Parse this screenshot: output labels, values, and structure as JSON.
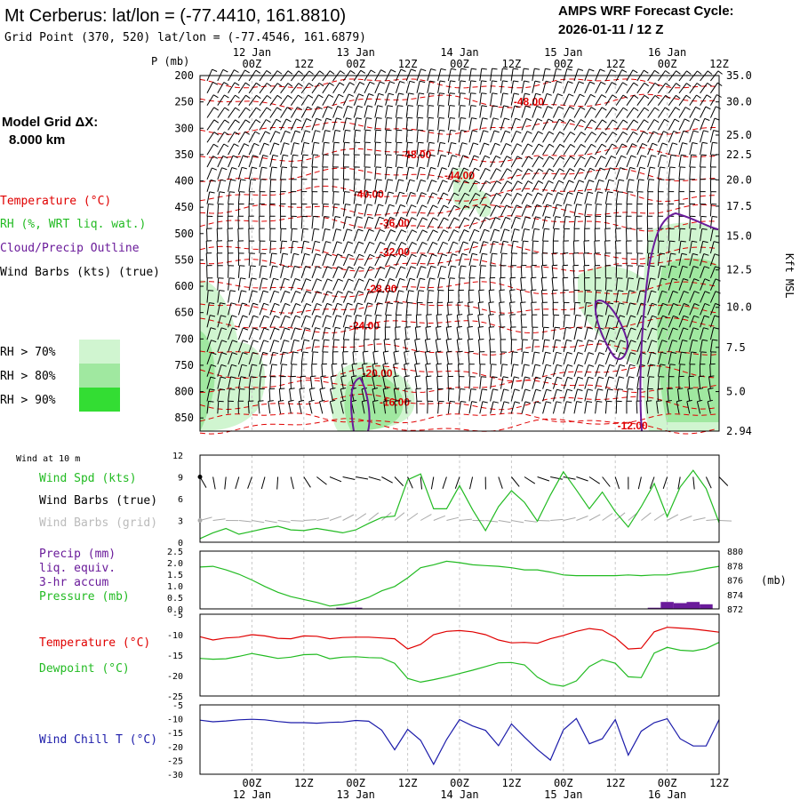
{
  "header": {
    "title": "Mt Cerberus:  lat/lon = (-77.4410, 161.8810)",
    "subtitle": "Grid Point (370, 520) lat/lon = (-77.4546, 161.6879)",
    "forecast_label": "AMPS WRF Forecast Cycle:",
    "forecast_cycle": "2026-01-11 / 12  Z",
    "grid_label": "Model Grid ΔX:",
    "grid_value": "8.000 km"
  },
  "legend": {
    "temperature": "Temperature (°C)",
    "rh": "RH (%, WRT liq. wat.)",
    "cloud": "Cloud/Precip Outline",
    "wind": "Wind Barbs (kts) (true)",
    "rh70": "RH > 70%",
    "rh80": "RH > 80%",
    "rh90": "RH > 90%",
    "colors": {
      "temp": "#e00000",
      "rh70": "#d0f5d0",
      "rh80": "#a0e8a0",
      "rh90": "#33dd33",
      "cloud": "#6a1b9a",
      "wind": "#000000"
    }
  },
  "chart_data": [
    {
      "type": "heatmap",
      "panel": "vertical-cross-section",
      "y_left_label": "P (mb)",
      "y_right_label": "Kft MSL",
      "ylim": [
        200,
        875
      ],
      "y_left_ticks": [
        "200",
        "250",
        "300",
        "350",
        "400",
        "450",
        "500",
        "550",
        "600",
        "650",
        "700",
        "750",
        "800",
        "850"
      ],
      "y_right_ticks": [
        {
          "label": "35.0",
          "p": 200
        },
        {
          "label": "30.0",
          "p": 250
        },
        {
          "label": "25.0",
          "p": 313
        },
        {
          "label": "22.5",
          "p": 350
        },
        {
          "label": "20.0",
          "p": 398
        },
        {
          "label": "17.5",
          "p": 448
        },
        {
          "label": "15.0",
          "p": 505
        },
        {
          "label": "12.5",
          "p": 569
        },
        {
          "label": "10.0",
          "p": 640
        },
        {
          "label": "7.5",
          "p": 716
        },
        {
          "label": "5.0",
          "p": 800
        },
        {
          "label": "2.94",
          "p": 875
        }
      ],
      "x_ticks": [
        "00Z",
        "12Z",
        "00Z",
        "12Z",
        "00Z",
        "12Z",
        "00Z",
        "12Z",
        "00Z",
        "12Z"
      ],
      "x_tick_hours": [
        12,
        24,
        36,
        48,
        60,
        72,
        84,
        96,
        108,
        120
      ],
      "x_dates": [
        {
          "label": "12 Jan",
          "hour": 12
        },
        {
          "label": "13 Jan",
          "hour": 36
        },
        {
          "label": "14 Jan",
          "hour": 60
        },
        {
          "label": "15 Jan",
          "hour": 84
        },
        {
          "label": "16 Jan",
          "hour": 108
        }
      ],
      "xlim": [
        0,
        120
      ],
      "isotherms": [
        {
          "label": "-48.00",
          "hour": 76,
          "p": 250
        },
        {
          "label": "-48.00",
          "hour": 50,
          "p": 350
        },
        {
          "label": "-44.00",
          "hour": 60,
          "p": 390
        },
        {
          "label": "-40.00",
          "hour": 39,
          "p": 425
        },
        {
          "label": "-36.00",
          "hour": 45,
          "p": 480
        },
        {
          "label": "-32.00",
          "hour": 45,
          "p": 535
        },
        {
          "label": "-28.00",
          "hour": 42,
          "p": 605
        },
        {
          "label": "-24.00",
          "hour": 38,
          "p": 675
        },
        {
          "label": "-20.00",
          "hour": 41,
          "p": 765
        },
        {
          "label": "-16.00",
          "hour": 45,
          "p": 820
        },
        {
          "label": "-12.00",
          "hour": 100,
          "p": 865
        }
      ]
    },
    {
      "type": "line",
      "panel": "wind-10m",
      "header": "Wind at 10 m",
      "label_speed": "Wind Spd (kts)",
      "label_barbs_true": "Wind Barbs (true)",
      "label_barbs_grid": "Wind Barbs (grid)",
      "ylim": [
        0,
        12
      ],
      "y_ticks": [
        "0",
        "3",
        "6",
        "9",
        "12"
      ],
      "x": [
        0,
        3,
        6,
        9,
        12,
        15,
        18,
        21,
        24,
        27,
        30,
        33,
        36,
        39,
        42,
        45,
        48,
        51,
        54,
        57,
        60,
        63,
        66,
        69,
        72,
        75,
        78,
        81,
        84,
        87,
        90,
        93,
        96,
        99,
        102,
        105,
        108,
        111,
        114,
        117,
        120
      ],
      "series": [
        {
          "values": [
            0.5,
            1.3,
            1.9,
            1.1,
            1.5,
            1.9,
            2.2,
            1.7,
            1.6,
            1.9,
            1.6,
            1.3,
            1.7,
            2.6,
            3.4,
            3.6,
            8.6,
            9.4,
            4.6,
            4.6,
            7.8,
            4.5,
            1.6,
            4.9,
            7.1,
            5.5,
            2.9,
            6.5,
            9.7,
            7.2,
            4.6,
            6.9,
            4.2,
            2.1,
            4.9,
            8.1,
            3.5,
            7.6,
            9.9,
            7.4,
            2.7
          ]
        }
      ]
    },
    {
      "type": "line",
      "panel": "precip-pressure",
      "label_precip": "Precip (mm)",
      "label_liq": "liq. equiv.",
      "label_accum": "3-hr accum",
      "label_pressure": "Pressure (mb)",
      "y_left_ticks": [
        "0.0",
        "0.5",
        "1.0",
        "1.5",
        "2.0",
        "2.5"
      ],
      "y_right_ticks": [
        "872",
        "874",
        "876",
        "878",
        "880"
      ],
      "y_right_unit": "(mb)",
      "ylim_left": [
        0,
        2.5
      ],
      "ylim_right": [
        872,
        880
      ],
      "x": [
        0,
        3,
        6,
        9,
        12,
        15,
        18,
        21,
        24,
        27,
        30,
        33,
        36,
        39,
        42,
        45,
        48,
        51,
        54,
        57,
        60,
        63,
        66,
        69,
        72,
        75,
        78,
        81,
        84,
        87,
        90,
        93,
        96,
        99,
        102,
        105,
        108,
        111,
        114,
        117,
        120
      ],
      "series": [
        {
          "values": [
            877.8,
            877.9,
            877.4,
            876.8,
            876.0,
            875.1,
            874.3,
            873.7,
            873.3,
            872.9,
            872.4,
            872.6,
            873.0,
            873.6,
            874.5,
            875.1,
            876.3,
            877.7,
            878.1,
            878.6,
            878.4,
            878.1,
            878.0,
            877.9,
            877.7,
            877.4,
            877.4,
            877.1,
            876.7,
            876.6,
            876.6,
            876.6,
            876.6,
            876.7,
            876.6,
            876.7,
            876.7,
            877.0,
            877.2,
            877.6,
            877.9
          ]
        }
      ],
      "precip": [
        {
          "hour": 33,
          "value": 0.05
        },
        {
          "hour": 36,
          "value": 0.05
        },
        {
          "hour": 105,
          "value": 0.05
        },
        {
          "hour": 108,
          "value": 0.3
        },
        {
          "hour": 111,
          "value": 0.25
        },
        {
          "hour": 114,
          "value": 0.3
        },
        {
          "hour": 117,
          "value": 0.2
        }
      ]
    },
    {
      "type": "line",
      "panel": "temperature-dewpoint",
      "label_temp": "Temperature (°C)",
      "label_dew": "Dewpoint (°C)",
      "ylim": [
        -25,
        -5
      ],
      "y_ticks": [
        "-5",
        "-10",
        "-15",
        "-20",
        "-25"
      ],
      "x": [
        0,
        3,
        6,
        9,
        12,
        15,
        18,
        21,
        24,
        27,
        30,
        33,
        36,
        39,
        42,
        45,
        48,
        51,
        54,
        57,
        60,
        63,
        66,
        69,
        72,
        75,
        78,
        81,
        84,
        87,
        90,
        93,
        96,
        99,
        102,
        105,
        108,
        111,
        114,
        117,
        120
      ],
      "series": [
        {
          "values": [
            -10.5,
            -11.3,
            -10.8,
            -10.6,
            -10.0,
            -10.3,
            -10.9,
            -11.0,
            -10.3,
            -10.4,
            -11.0,
            -10.7,
            -10.6,
            -10.6,
            -10.8,
            -11.0,
            -13.5,
            -12.4,
            -10.0,
            -9.2,
            -9.0,
            -9.3,
            -10.0,
            -11.3,
            -12.0,
            -11.9,
            -12.1,
            -11.0,
            -10.2,
            -9.2,
            -8.5,
            -8.9,
            -10.7,
            -13.5,
            -13.3,
            -9.3,
            -8.2,
            -8.4,
            -8.6,
            -9.0,
            -9.4
          ]
        },
        {
          "values": [
            -15.8,
            -16.0,
            -15.9,
            -15.3,
            -14.6,
            -15.2,
            -15.8,
            -15.5,
            -14.9,
            -14.8,
            -15.9,
            -15.5,
            -15.4,
            -15.6,
            -15.7,
            -17.0,
            -20.7,
            -21.6,
            -21.0,
            -20.3,
            -19.5,
            -18.7,
            -17.8,
            -16.9,
            -16.8,
            -17.4,
            -20.4,
            -22.1,
            -22.6,
            -21.3,
            -17.8,
            -16.1,
            -17.0,
            -20.3,
            -20.5,
            -14.5,
            -13.1,
            -13.8,
            -14.0,
            -13.4,
            -11.9
          ]
        }
      ]
    },
    {
      "type": "line",
      "panel": "wind-chill",
      "label": "Wind Chill T (°C)",
      "ylim": [
        -30,
        -5
      ],
      "y_ticks": [
        "-5",
        "-10",
        "-15",
        "-20",
        "-25",
        "-30"
      ],
      "x": [
        0,
        3,
        6,
        9,
        12,
        15,
        18,
        21,
        24,
        27,
        30,
        33,
        36,
        39,
        42,
        45,
        48,
        51,
        54,
        57,
        60,
        63,
        66,
        69,
        72,
        75,
        78,
        81,
        84,
        87,
        90,
        93,
        96,
        99,
        102,
        105,
        108,
        111,
        114,
        117,
        120
      ],
      "series": [
        {
          "values": [
            -10.5,
            -11.1,
            -10.8,
            -10.4,
            -10.2,
            -10.4,
            -11.0,
            -11.4,
            -11.4,
            -11.6,
            -11.3,
            -11.2,
            -10.6,
            -10.9,
            -14.1,
            -21.2,
            -13.8,
            -17.8,
            -26.4,
            -17.5,
            -10.3,
            -12.6,
            -14.2,
            -19.7,
            -11.9,
            -16.6,
            -21.1,
            -24.9,
            -14.0,
            -9.9,
            -19.0,
            -17.2,
            -10.3,
            -23.1,
            -14.5,
            -11.4,
            -10.0,
            -17.2,
            -19.8,
            -19.8,
            -10.3
          ]
        }
      ]
    }
  ]
}
